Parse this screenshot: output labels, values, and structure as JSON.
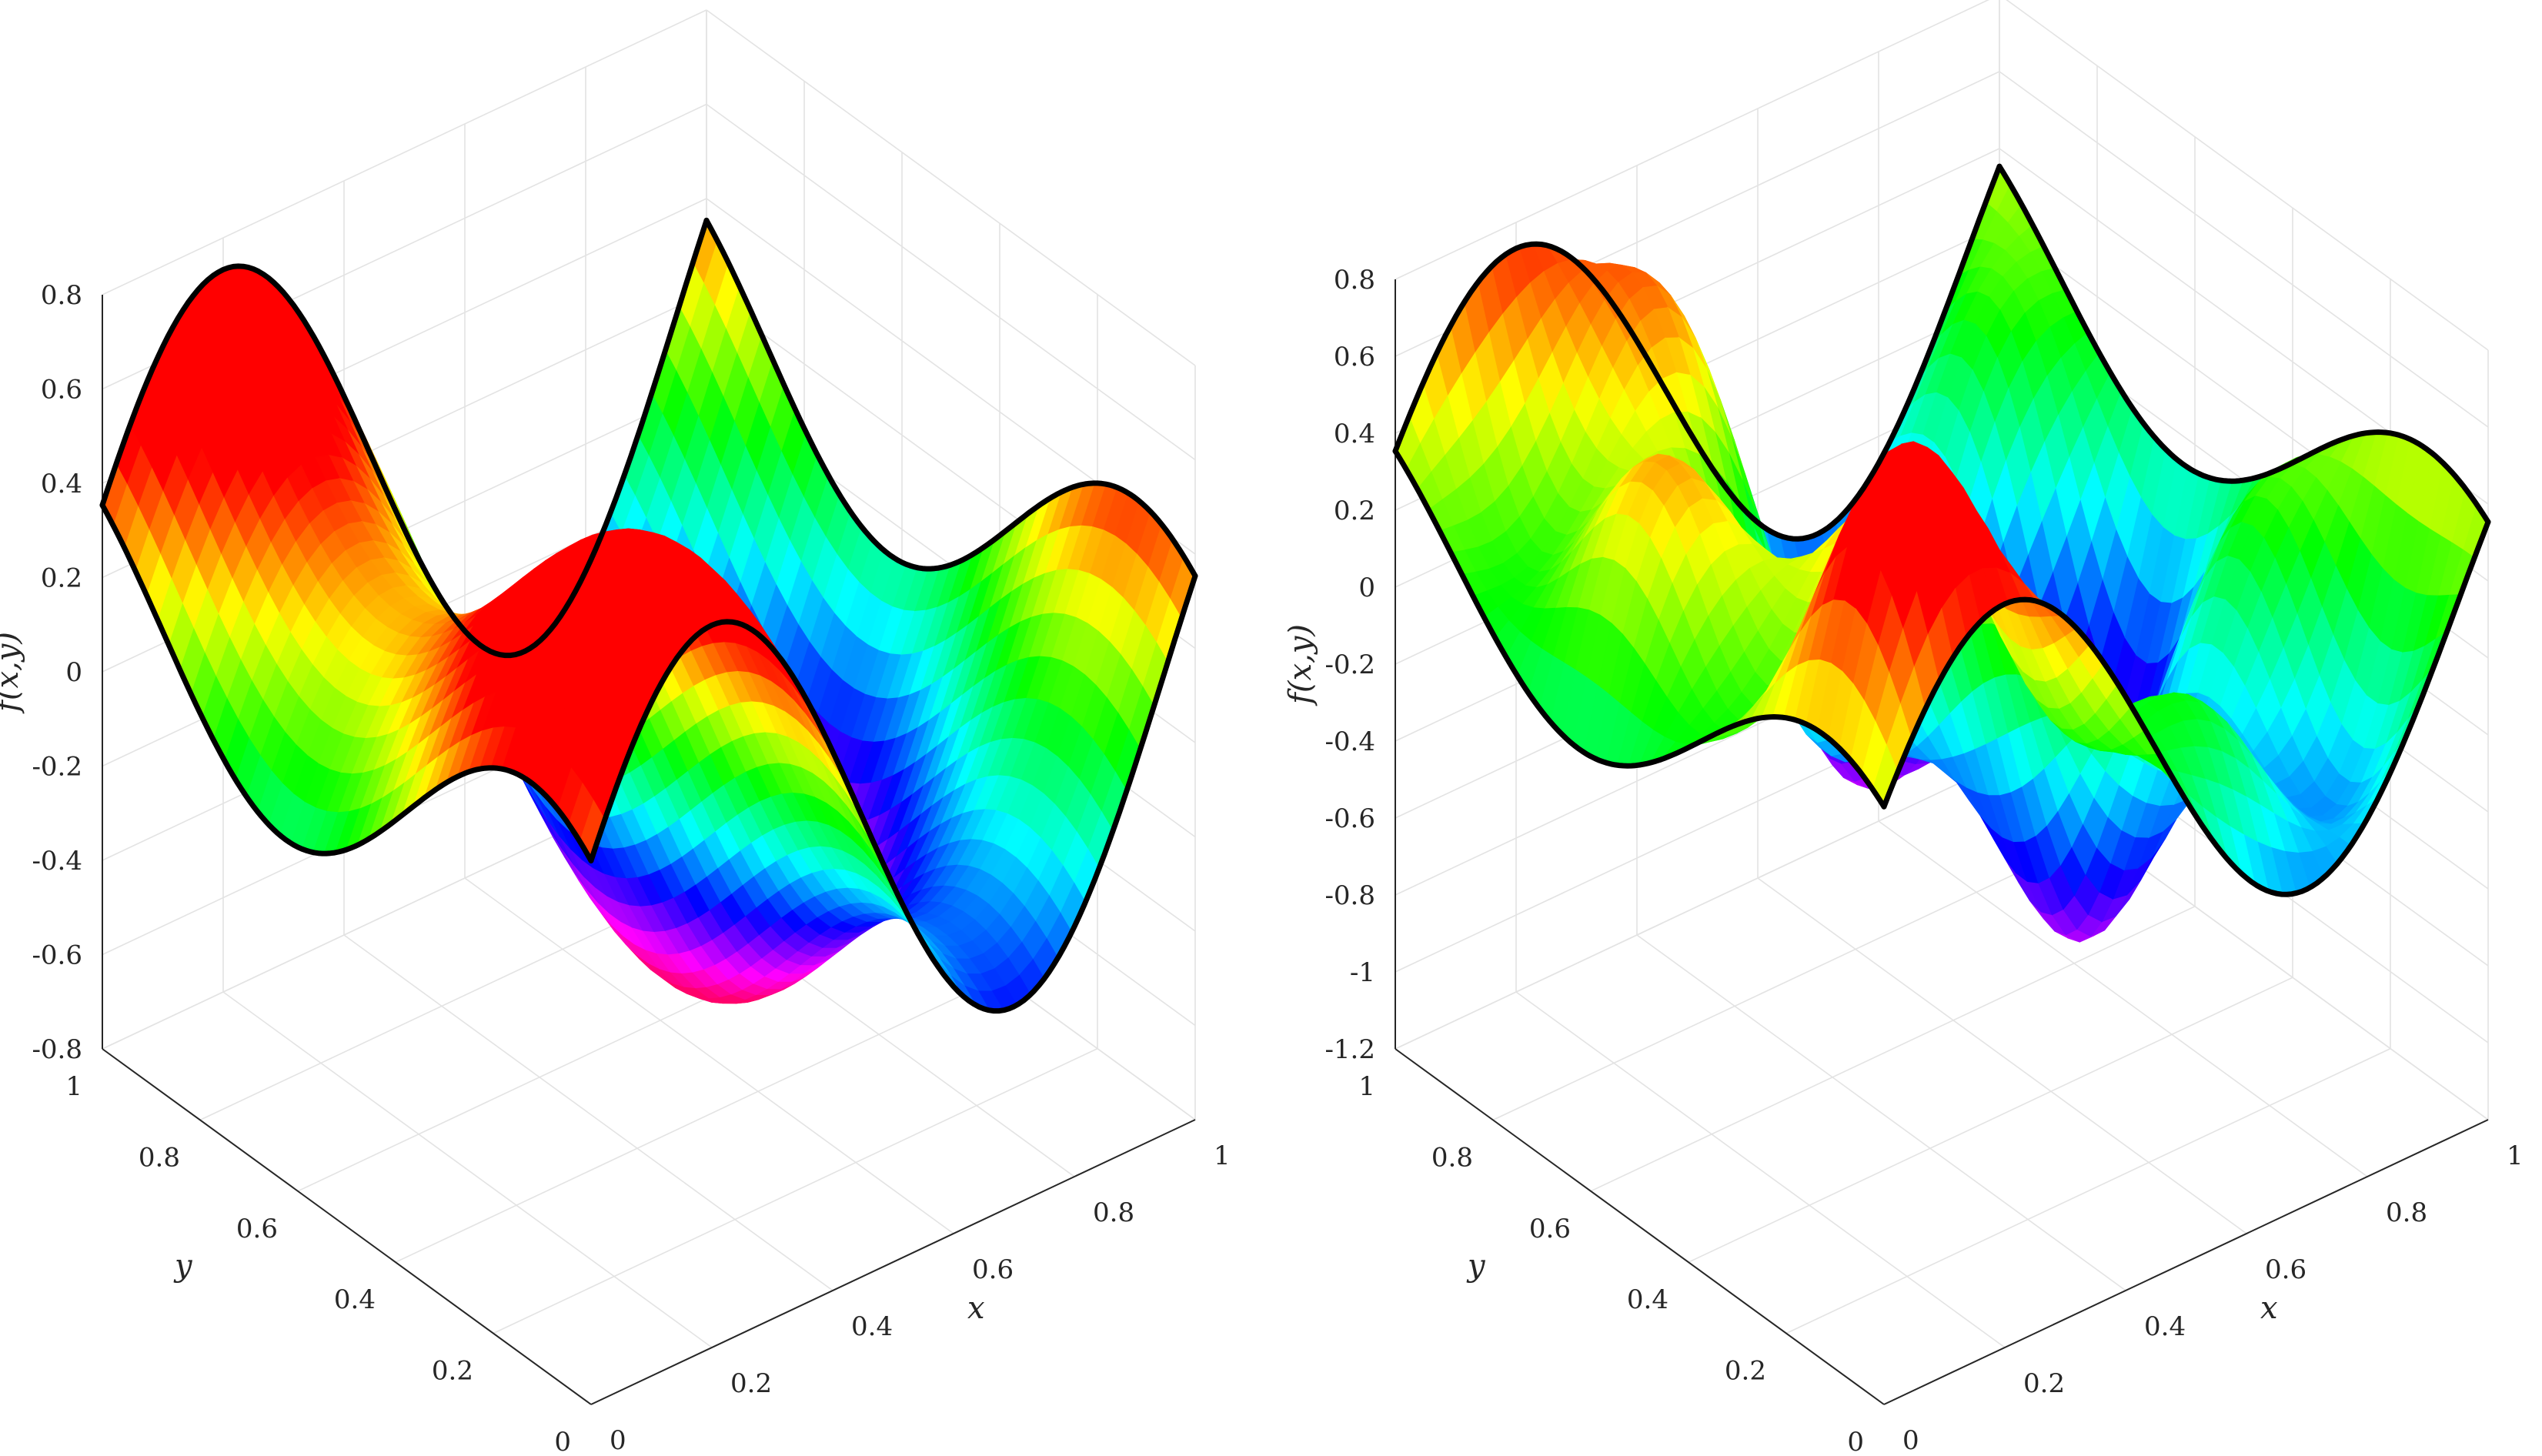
{
  "chart_data": [
    {
      "type": "surface",
      "surface": "f(x,y) = 0.35*sin(2*pi*x) + 0.5*sin(pi*(x+y+0.25))*cos(pi*(x-y))",
      "xlabel": "x",
      "ylabel": "y",
      "zlabel": "f(x,y)",
      "xlim": [
        0,
        1
      ],
      "ylim": [
        0,
        1
      ],
      "zlim": [
        -0.8,
        0.8
      ],
      "xticks": [
        "0",
        "0.2",
        "0.4",
        "0.6",
        "0.8",
        "1"
      ],
      "yticks": [
        "0",
        "0.2",
        "0.4",
        "0.6",
        "0.8",
        "1"
      ],
      "zticks": [
        "-0.8",
        "-0.6",
        "-0.4",
        "-0.2",
        "0",
        "0.2",
        "0.4",
        "0.6",
        "0.8"
      ],
      "colormap": "hsv",
      "edges_highlighted": true,
      "grid": true
    },
    {
      "type": "surface",
      "surface": "f(x,y) = 0.35*sin(2*pi*x) + 0.5*sin(pi*(x+y+0.25))*cos(pi*(x-y)) + 0.3*sin(4*pi*x)*sin(4*pi*y)",
      "xlabel": "x",
      "ylabel": "y",
      "zlabel": "f(x,y)",
      "xlim": [
        0,
        1
      ],
      "ylim": [
        0,
        1
      ],
      "zlim": [
        -1.2,
        0.8
      ],
      "xticks": [
        "0",
        "0.2",
        "0.4",
        "0.6",
        "0.8",
        "1"
      ],
      "yticks": [
        "0",
        "0.2",
        "0.4",
        "0.6",
        "0.8",
        "1"
      ],
      "zticks": [
        "-1.2",
        "-1",
        "-0.8",
        "-0.6",
        "-0.4",
        "-0.2",
        "0",
        "0.2",
        "0.4",
        "0.6",
        "0.8"
      ],
      "colormap": "hsv",
      "edges_highlighted": true,
      "grid": true
    }
  ]
}
